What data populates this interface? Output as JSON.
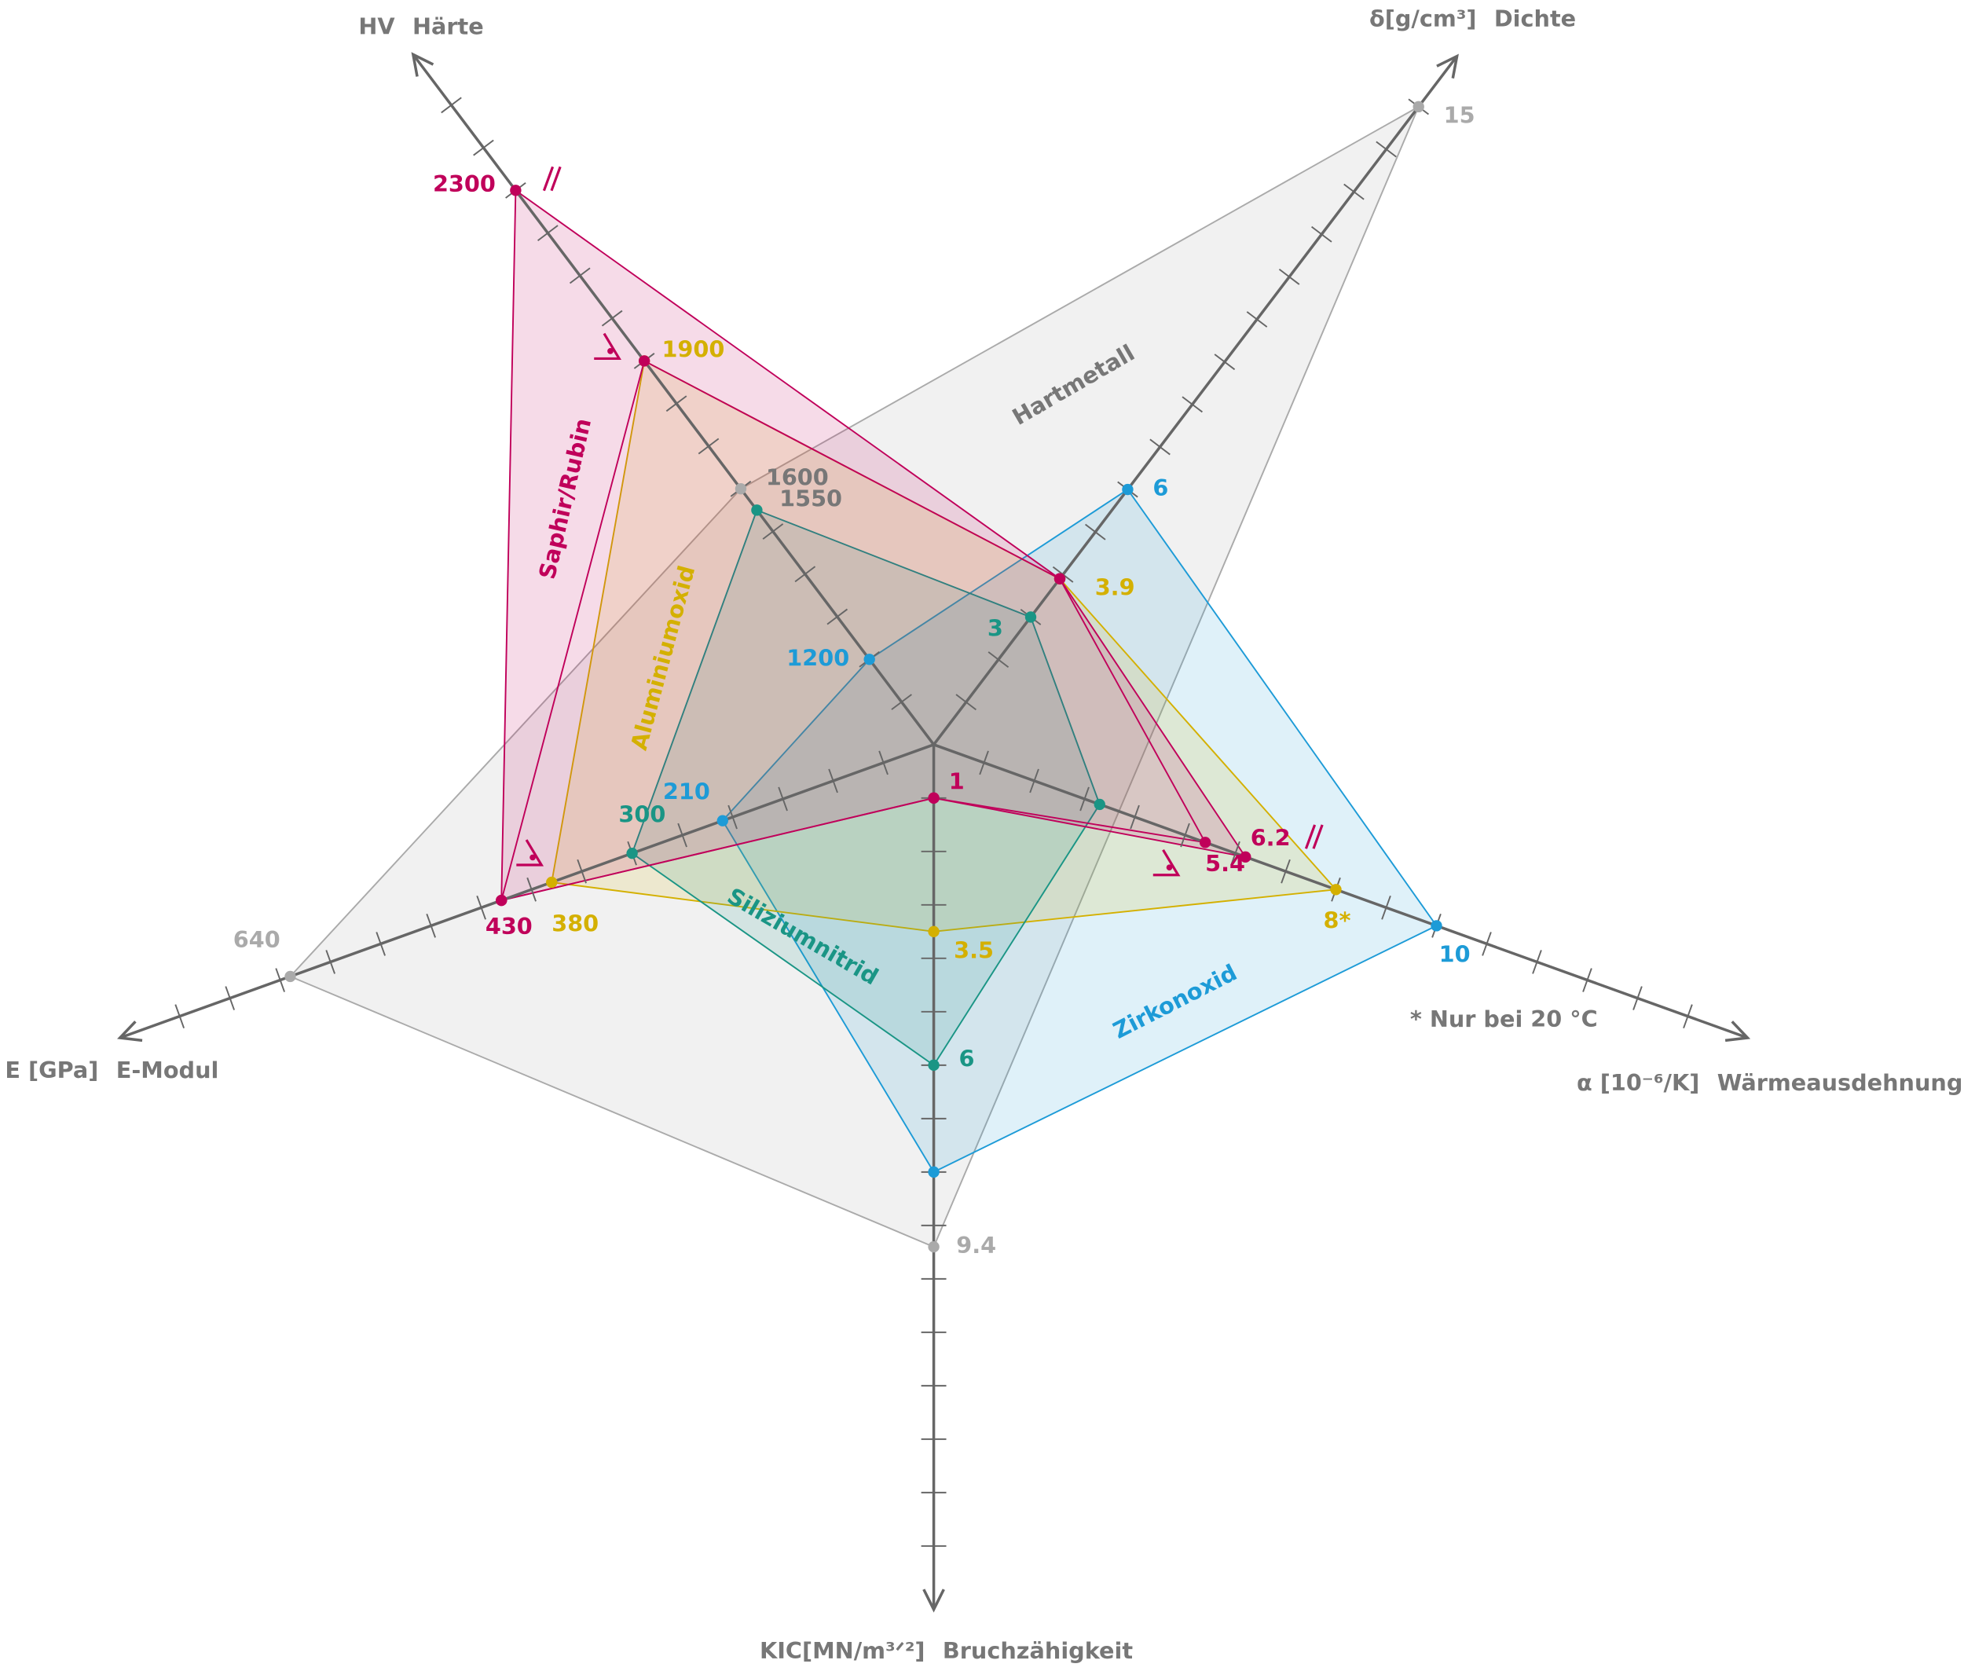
{
  "chart_data": {
    "type": "radar",
    "axes": [
      {
        "unit": "HV",
        "name": "Härte",
        "lim": [
          1000,
          2600
        ],
        "ticks": [
          1100,
          1200,
          1300,
          1400,
          1500,
          1600,
          1700,
          1800,
          1900,
          2000,
          2100,
          2200,
          2300,
          2400,
          2500
        ]
      },
      {
        "unit": "δ[g/cm³]",
        "name": "Dichte",
        "lim": [
          0,
          16
        ],
        "ticks": [
          1,
          2,
          3,
          4,
          5,
          6,
          7,
          8,
          9,
          10,
          11,
          12,
          13,
          14,
          15
        ]
      },
      {
        "unit": "α [10⁻⁶/K]",
        "name": "Wärmeausdehnung",
        "lim": [
          0,
          16
        ],
        "ticks": [
          1,
          2,
          3,
          4,
          5,
          6,
          7,
          8,
          9,
          10,
          11,
          12,
          13,
          14,
          15
        ]
      },
      {
        "unit": "KIC[MN/m³ᐟ²]",
        "name": "Bruchzähigkeit",
        "lim": [
          0,
          16
        ],
        "ticks": [
          1,
          2,
          3,
          4,
          5,
          6,
          7,
          8,
          9,
          10,
          11,
          12,
          13,
          14,
          15
        ]
      },
      {
        "unit": "E [GPa]",
        "name": "E-Modul",
        "lim": [
          0,
          800
        ],
        "ticks": [
          50,
          100,
          150,
          200,
          250,
          300,
          350,
          400,
          450,
          500,
          550,
          600,
          650,
          700,
          750
        ]
      }
    ],
    "series": [
      {
        "name": "Hartmetall",
        "color": "#aaaaaa",
        "values": [
          1600,
          15,
          null,
          9.4,
          640
        ],
        "value_labels": [
          "1600",
          "15",
          null,
          "9.4",
          "640"
        ]
      },
      {
        "name": "Zirkonoxid",
        "color": "#1d9bd7",
        "values": [
          1200,
          6,
          10,
          8,
          210
        ],
        "value_labels": [
          "1200",
          "6",
          "10",
          null,
          "210"
        ]
      },
      {
        "name": "Aluminiumoxid",
        "color": "#d4b000",
        "values": [
          1900,
          3.9,
          8,
          3.5,
          380
        ],
        "value_labels": [
          "1900",
          "3.9",
          "8*",
          "3.5",
          "380"
        ]
      },
      {
        "name": "Siliziumnitrid",
        "color": "#1a9585",
        "values": [
          1550,
          3,
          3.3,
          6,
          300
        ],
        "value_labels": [
          "1550",
          "3",
          null,
          "6",
          "300"
        ]
      },
      {
        "name": "Saphir/Rubin",
        "color": "#c0005a",
        "values": [
          2300,
          3.9,
          6.2,
          1,
          430
        ],
        "value_labels": [
          "2300",
          null,
          "6.2",
          "1",
          "430"
        ]
      },
      {
        "color": "#c0005a",
        "values": [
          1900,
          3.9,
          5.4,
          1,
          430
        ],
        "value_labels": [
          null,
          null,
          "5.4",
          null,
          null
        ]
      }
    ],
    "note": "* Nur bei 20 °C"
  }
}
